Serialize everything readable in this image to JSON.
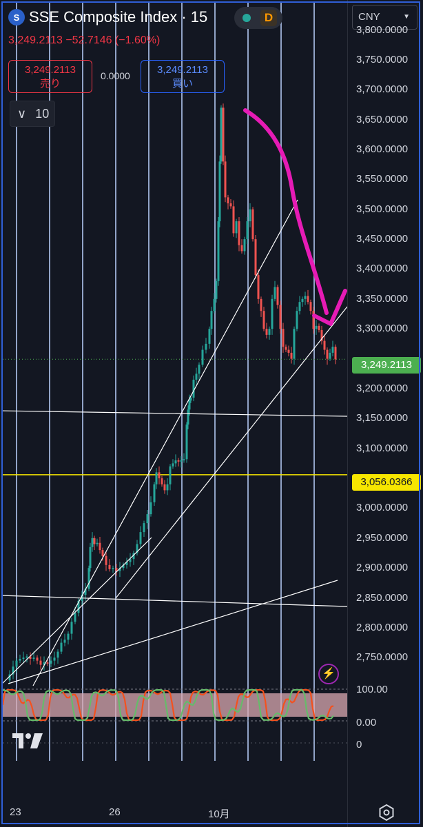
{
  "header": {
    "logo_glyph": "S",
    "title": "SSE Composite Index · 15",
    "status_dot_color": "#26a69a",
    "interval_badge": "D",
    "price_line": "3,249.2113 −52.7146 (−1.60%)"
  },
  "trade": {
    "sell_price": "3,249.2113",
    "sell_label": "売り",
    "spread": "0.0000",
    "buy_price": "3,249.2113",
    "buy_label": "買い"
  },
  "indicators_toggle": {
    "chevron": "∨",
    "count": "10"
  },
  "axis": {
    "currency": "CNY",
    "price_labels": [
      "3,800.0000",
      "3,750.0000",
      "3,700.0000",
      "3,650.0000",
      "3,600.0000",
      "3,550.0000",
      "3,500.0000",
      "3,450.0000",
      "3,400.0000",
      "3,350.0000",
      "3,300.0000",
      "3,250.0000",
      "3,200.0000",
      "3,150.0000",
      "3,100.0000",
      "3,050.0000",
      "3,000.0000",
      "2,950.0000",
      "2,900.0000",
      "2,850.0000",
      "2,800.0000",
      "2,750.0000"
    ],
    "last_price_tag": "3,249.2113",
    "level_tag": "3,056.0366",
    "osc_labels": [
      "100.00",
      "0.00"
    ],
    "osc2_label": "0"
  },
  "time_axis": {
    "labels": [
      "23",
      "26",
      "10月"
    ]
  },
  "colors": {
    "background": "#131722",
    "up": "#26a69a",
    "down": "#ef5350",
    "vgrid": "#a9bde6",
    "level_line": "#f7e600",
    "annotation": "#e61bb5"
  },
  "chart_data": {
    "type": "candlestick",
    "instrument": "SSE Composite Index",
    "last_price": 3249.2113,
    "change": -52.7146,
    "change_pct": -1.6,
    "ylim": [
      2705,
      3815
    ],
    "horizontal_level": 3056.0366,
    "path": [
      [
        0,
        2712
      ],
      [
        5,
        2722
      ],
      [
        10,
        2735
      ],
      [
        15,
        2745
      ],
      [
        20,
        2748
      ],
      [
        25,
        2750
      ],
      [
        30,
        2752
      ],
      [
        35,
        2748
      ],
      [
        40,
        2750
      ],
      [
        45,
        2745
      ],
      [
        50,
        2738
      ],
      [
        55,
        2742
      ],
      [
        60,
        2740
      ],
      [
        65,
        2745
      ],
      [
        70,
        2750
      ],
      [
        75,
        2760
      ],
      [
        80,
        2775
      ],
      [
        85,
        2780
      ],
      [
        90,
        2790
      ],
      [
        95,
        2810
      ],
      [
        100,
        2825
      ],
      [
        105,
        2845
      ],
      [
        110,
        2855
      ],
      [
        115,
        2865
      ],
      [
        120,
        2900
      ],
      [
        122,
        2935
      ],
      [
        125,
        2950
      ],
      [
        128,
        2940
      ],
      [
        132,
        2942
      ],
      [
        136,
        2930
      ],
      [
        140,
        2920
      ],
      [
        145,
        2905
      ],
      [
        150,
        2898
      ],
      [
        155,
        2900
      ],
      [
        160,
        2895
      ],
      [
        165,
        2900
      ],
      [
        170,
        2905
      ],
      [
        175,
        2910
      ],
      [
        180,
        2915
      ],
      [
        185,
        2925
      ],
      [
        190,
        2940
      ],
      [
        195,
        2960
      ],
      [
        200,
        2975
      ],
      [
        205,
        2990
      ],
      [
        210,
        3010
      ],
      [
        215,
        3040
      ],
      [
        218,
        3060
      ],
      [
        222,
        3050
      ],
      [
        226,
        3040
      ],
      [
        230,
        3030
      ],
      [
        234,
        3040
      ],
      [
        238,
        3070
      ],
      [
        242,
        3075
      ],
      [
        246,
        3080
      ],
      [
        250,
        3078
      ],
      [
        254,
        3080
      ],
      [
        258,
        3082
      ],
      [
        262,
        3140
      ],
      [
        264,
        3165
      ],
      [
        266,
        3180
      ],
      [
        268,
        3185
      ],
      [
        272,
        3215
      ],
      [
        276,
        3225
      ],
      [
        280,
        3240
      ],
      [
        285,
        3265
      ],
      [
        290,
        3275
      ],
      [
        295,
        3300
      ],
      [
        298,
        3330
      ],
      [
        302,
        3350
      ],
      [
        305,
        3380
      ],
      [
        308,
        3480
      ],
      [
        310,
        3580
      ],
      [
        312,
        3670
      ],
      [
        315,
        3580
      ],
      [
        318,
        3520
      ],
      [
        322,
        3510
      ],
      [
        326,
        3505
      ],
      [
        330,
        3460
      ],
      [
        334,
        3480
      ],
      [
        338,
        3440
      ],
      [
        342,
        3430
      ],
      [
        346,
        3450
      ],
      [
        350,
        3480
      ],
      [
        354,
        3500
      ],
      [
        358,
        3450
      ],
      [
        362,
        3390
      ],
      [
        366,
        3350
      ],
      [
        370,
        3330
      ],
      [
        374,
        3300
      ],
      [
        378,
        3290
      ],
      [
        382,
        3300
      ],
      [
        386,
        3350
      ],
      [
        390,
        3370
      ],
      [
        394,
        3340
      ],
      [
        398,
        3300
      ],
      [
        402,
        3270
      ],
      [
        406,
        3265
      ],
      [
        410,
        3260
      ],
      [
        414,
        3250
      ],
      [
        418,
        3300
      ],
      [
        422,
        3330
      ],
      [
        426,
        3345
      ],
      [
        430,
        3350
      ],
      [
        434,
        3355
      ],
      [
        438,
        3345
      ],
      [
        442,
        3330
      ],
      [
        446,
        3300
      ],
      [
        450,
        3305
      ],
      [
        454,
        3298
      ],
      [
        458,
        3280
      ],
      [
        462,
        3265
      ],
      [
        466,
        3250
      ],
      [
        470,
        3260
      ],
      [
        474,
        3270
      ],
      [
        478,
        3249
      ]
    ]
  }
}
